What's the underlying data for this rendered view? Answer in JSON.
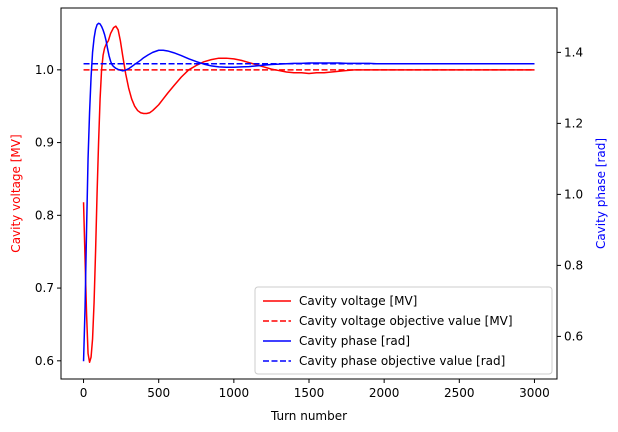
{
  "chart_data": {
    "type": "line",
    "title": "",
    "xlabel": "Turn number",
    "ylabel_left": "Cavity voltage [MV]",
    "ylabel_right": "Cavity phase [rad]",
    "xlim": [
      -150,
      3150
    ],
    "ylim_left": [
      0.575,
      1.085
    ],
    "ylim_right": [
      0.48,
      1.525
    ],
    "x_ticks": [
      0,
      500,
      1000,
      1500,
      2000,
      2500,
      3000
    ],
    "y_left_ticks": [
      0.6,
      0.7,
      0.8,
      0.9,
      1.0
    ],
    "y_right_ticks": [
      0.6,
      0.8,
      1.0,
      1.2,
      1.4
    ],
    "y_left_tick_labels": [
      "0.6",
      "0.7",
      "0.8",
      "0.9",
      "1.0"
    ],
    "y_right_tick_labels": [
      "0.6",
      "0.8",
      "1.0",
      "1.2",
      "1.4"
    ],
    "grid": false,
    "legend_position": "bottom-right",
    "colors": {
      "voltage": "#ff0000",
      "phase": "#0000ff",
      "left_axis_label": "#ff0000",
      "right_axis_label": "#0000ff"
    },
    "series": [
      {
        "name": "Cavity voltage [MV]",
        "axis": "left",
        "style": "solid",
        "color": "#ff0000",
        "x": [
          0,
          10,
          20,
          30,
          40,
          50,
          60,
          70,
          80,
          90,
          100,
          110,
          120,
          130,
          140,
          150,
          165,
          180,
          200,
          215,
          230,
          245,
          260,
          280,
          300,
          320,
          340,
          360,
          380,
          400,
          420,
          440,
          460,
          480,
          500,
          530,
          560,
          600,
          650,
          700,
          750,
          800,
          850,
          900,
          950,
          1000,
          1050,
          1100,
          1150,
          1200,
          1250,
          1300,
          1350,
          1400,
          1450,
          1500,
          1550,
          1600,
          1650,
          1700,
          1750,
          1800,
          1850,
          1900,
          2000,
          2100,
          2200,
          2400,
          2600,
          2800,
          3000
        ],
        "y": [
          0.818,
          0.74,
          0.665,
          0.61,
          0.598,
          0.605,
          0.63,
          0.68,
          0.75,
          0.83,
          0.9,
          0.96,
          1.0,
          1.02,
          1.03,
          1.035,
          1.04,
          1.05,
          1.058,
          1.06,
          1.055,
          1.04,
          1.02,
          0.995,
          0.975,
          0.96,
          0.95,
          0.944,
          0.941,
          0.94,
          0.94,
          0.941,
          0.944,
          0.948,
          0.952,
          0.96,
          0.968,
          0.978,
          0.99,
          1.0,
          1.006,
          1.011,
          1.014,
          1.016,
          1.016,
          1.015,
          1.013,
          1.01,
          1.007,
          1.004,
          1.001,
          0.999,
          0.997,
          0.996,
          0.996,
          0.995,
          0.996,
          0.996,
          0.997,
          0.998,
          0.999,
          1.0,
          1.0,
          1.0,
          1.0,
          1.0,
          1.0,
          1.0,
          1.0,
          1.0,
          1.0
        ]
      },
      {
        "name": "Cavity voltage objective value [MV]",
        "axis": "left",
        "style": "dashed",
        "color": "#ff0000",
        "x": [
          0,
          3000
        ],
        "y": [
          1.0,
          1.0
        ]
      },
      {
        "name": "Cavity phase [rad]",
        "axis": "right",
        "style": "solid",
        "color": "#0000ff",
        "x": [
          0,
          10,
          20,
          30,
          40,
          50,
          60,
          70,
          80,
          90,
          100,
          110,
          120,
          130,
          140,
          150,
          160,
          170,
          180,
          190,
          200,
          215,
          230,
          245,
          260,
          280,
          300,
          320,
          340,
          360,
          380,
          400,
          430,
          460,
          500,
          530,
          560,
          600,
          650,
          700,
          750,
          800,
          850,
          900,
          950,
          1000,
          1050,
          1100,
          1150,
          1200,
          1250,
          1300,
          1350,
          1400,
          1450,
          1500,
          1550,
          1600,
          1650,
          1700,
          1750,
          1800,
          1850,
          1900,
          1950,
          2000,
          2100,
          2200,
          2400,
          2600,
          2800,
          3000
        ],
        "y": [
          0.53,
          0.68,
          0.9,
          1.1,
          1.23,
          1.33,
          1.4,
          1.44,
          1.465,
          1.478,
          1.482,
          1.48,
          1.473,
          1.463,
          1.45,
          1.433,
          1.41,
          1.39,
          1.375,
          1.365,
          1.36,
          1.355,
          1.352,
          1.35,
          1.348,
          1.35,
          1.354,
          1.36,
          1.366,
          1.372,
          1.378,
          1.385,
          1.393,
          1.4,
          1.406,
          1.406,
          1.404,
          1.399,
          1.391,
          1.382,
          1.374,
          1.367,
          1.362,
          1.359,
          1.358,
          1.358,
          1.359,
          1.36,
          1.362,
          1.364,
          1.366,
          1.367,
          1.368,
          1.369,
          1.369,
          1.37,
          1.37,
          1.37,
          1.37,
          1.37,
          1.369,
          1.369,
          1.369,
          1.369,
          1.368,
          1.368,
          1.368,
          1.368,
          1.368,
          1.368,
          1.368,
          1.368
        ]
      },
      {
        "name": "Cavity phase objective value [rad]",
        "axis": "right",
        "style": "dashed",
        "color": "#0000ff",
        "x": [
          0,
          3000
        ],
        "y": [
          1.368,
          1.368
        ]
      }
    ]
  }
}
